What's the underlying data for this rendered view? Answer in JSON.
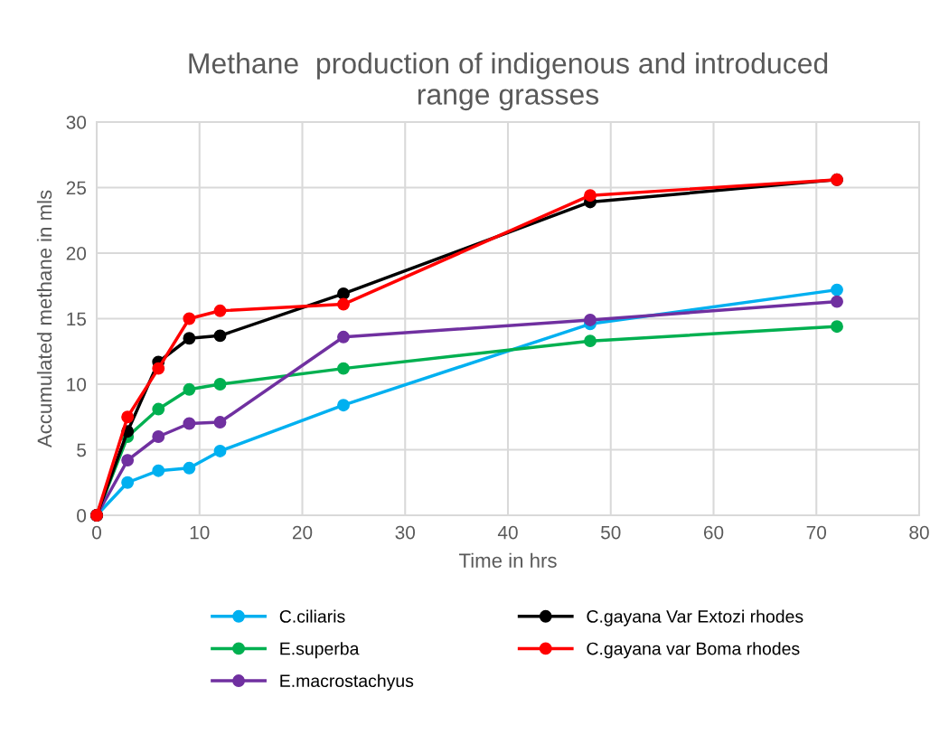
{
  "chart_data": {
    "type": "line",
    "title": "Methane  production of indigenous and introduced\nrange grasses",
    "xlabel": "Time in hrs",
    "ylabel": "Accumulated methane in mls",
    "x": [
      0,
      3,
      6,
      9,
      12,
      24,
      48,
      72
    ],
    "series": [
      {
        "name": "C.ciliaris",
        "color": "#00b0f0",
        "values": [
          0,
          2.5,
          3.4,
          3.6,
          4.9,
          8.4,
          14.6,
          17.2
        ]
      },
      {
        "name": "E.superba",
        "color": "#00b050",
        "values": [
          0,
          6.0,
          8.1,
          9.6,
          10.0,
          11.2,
          13.3,
          14.4
        ]
      },
      {
        "name": "E.macrostachyus",
        "color": "#7030a0",
        "values": [
          0,
          4.2,
          6.0,
          7.0,
          7.1,
          13.6,
          14.9,
          16.3
        ]
      },
      {
        "name": "C.gayana Var Extozi rhodes",
        "color": "#000000",
        "values": [
          0,
          6.4,
          11.7,
          13.5,
          13.7,
          16.9,
          23.9,
          25.6
        ]
      },
      {
        "name": "C.gayana var Boma rhodes",
        "color": "#ff0000",
        "values": [
          0,
          7.5,
          11.2,
          15.0,
          15.6,
          16.1,
          24.4,
          25.6
        ]
      }
    ],
    "xlim": [
      0,
      80
    ],
    "xticks": [
      0,
      10,
      20,
      30,
      40,
      50,
      60,
      70,
      80
    ],
    "ylim": [
      0,
      30
    ],
    "yticks": [
      0,
      5,
      10,
      15,
      20,
      25,
      30
    ],
    "grid": true,
    "legend": "bottom",
    "marker": "circle",
    "line_style": "solid"
  }
}
